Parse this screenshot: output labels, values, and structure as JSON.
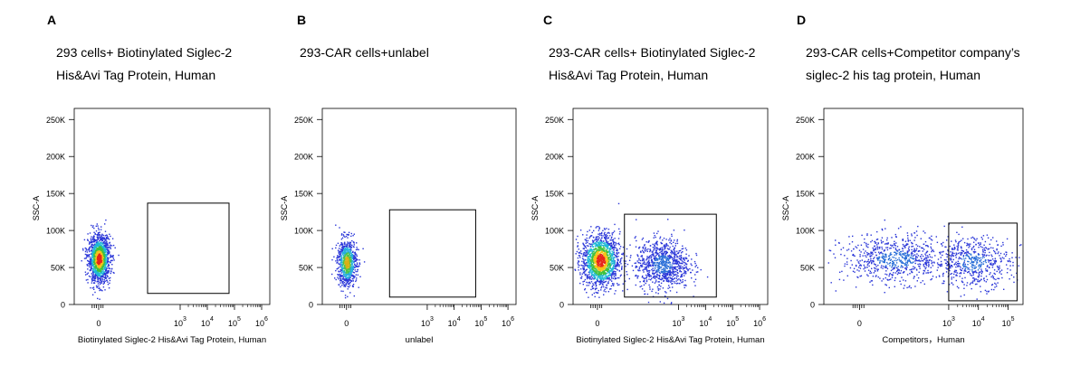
{
  "chart_data": [
    {
      "type": "scatter",
      "panel_label": "A",
      "title_lines": [
        "293 cells+ Biotinylated Siglec-2",
        "His&Avi Tag Protein, Human"
      ],
      "xlabel": "Biotinylated Siglec-2 His&Avi Tag Protein, Human",
      "ylabel": "SSC-A",
      "y_ticks": [
        "250K",
        "200K",
        "150K",
        "100K",
        "50K",
        "0"
      ],
      "y_tick_values": [
        250,
        200,
        150,
        100,
        50,
        0
      ],
      "ylim": [
        0,
        265
      ],
      "x_ticks": [
        {
          "base": "0",
          "exp": ""
        },
        {
          "base": "10",
          "exp": "3"
        },
        {
          "base": "10",
          "exp": "4"
        },
        {
          "base": "10",
          "exp": "5"
        },
        {
          "base": "10",
          "exp": "6"
        }
      ],
      "x_tick_values": [
        0,
        3,
        4,
        5,
        6
      ],
      "xlim": [
        -0.9,
        6.3
      ],
      "gate": {
        "x": [
          1.8,
          4.8
        ],
        "y": [
          15,
          137
        ]
      },
      "populations": [
        {
          "x_center": 0.0,
          "x_sd": 0.2,
          "y_center": 62,
          "y_sd": 16,
          "count": 1400,
          "density": "high"
        }
      ]
    },
    {
      "type": "scatter",
      "panel_label": "B",
      "title_lines": [
        "293-CAR cells+unlabel"
      ],
      "xlabel": "unlabel",
      "ylabel": "SSC-A",
      "y_ticks": [
        "250K",
        "200K",
        "150K",
        "100K",
        "50K",
        "0"
      ],
      "y_tick_values": [
        250,
        200,
        150,
        100,
        50,
        0
      ],
      "ylim": [
        0,
        265
      ],
      "x_ticks": [
        {
          "base": "0",
          "exp": ""
        },
        {
          "base": "10",
          "exp": "3"
        },
        {
          "base": "10",
          "exp": "4"
        },
        {
          "base": "10",
          "exp": "5"
        },
        {
          "base": "10",
          "exp": "6"
        }
      ],
      "x_tick_values": [
        0,
        3,
        4,
        5,
        6
      ],
      "xlim": [
        -0.9,
        6.3
      ],
      "gate": {
        "x": [
          1.6,
          4.8
        ],
        "y": [
          10,
          128
        ]
      },
      "populations": [
        {
          "x_center": 0.0,
          "x_sd": 0.18,
          "y_center": 57,
          "y_sd": 16,
          "count": 800,
          "density": "medium"
        }
      ]
    },
    {
      "type": "scatter",
      "panel_label": "C",
      "title_lines": [
        "293-CAR cells+ Biotinylated Siglec-2",
        "His&Avi Tag Protein, Human"
      ],
      "xlabel": "Biotinylated Siglec-2 His&Avi Tag Protein, Human",
      "ylabel": "SSC-A",
      "y_ticks": [
        "250K",
        "200K",
        "150K",
        "100K",
        "50K",
        "0"
      ],
      "y_tick_values": [
        250,
        200,
        150,
        100,
        50,
        0
      ],
      "ylim": [
        0,
        265
      ],
      "x_ticks": [
        {
          "base": "0",
          "exp": ""
        },
        {
          "base": "10",
          "exp": "3"
        },
        {
          "base": "10",
          "exp": "4"
        },
        {
          "base": "10",
          "exp": "5"
        },
        {
          "base": "10",
          "exp": "6"
        }
      ],
      "x_tick_values": [
        0,
        3,
        4,
        5,
        6
      ],
      "xlim": [
        -0.9,
        6.3
      ],
      "gate": {
        "x": [
          1.0,
          4.4
        ],
        "y": [
          10,
          122
        ]
      },
      "populations": [
        {
          "x_center": 0.1,
          "x_sd": 0.35,
          "y_center": 60,
          "y_sd": 18,
          "count": 1500,
          "density": "high"
        },
        {
          "x_center": 2.4,
          "x_sd": 0.5,
          "y_center": 55,
          "y_sd": 17,
          "count": 900,
          "density": "low"
        }
      ]
    },
    {
      "type": "scatter",
      "panel_label": "D",
      "title_lines": [
        "293-CAR cells+Competitor company’s",
        "siglec-2 his tag protein, Human"
      ],
      "xlabel": "Competitors，Human",
      "ylabel": "SSC-A",
      "y_ticks": [
        "250K",
        "200K",
        "150K",
        "100K",
        "50K",
        "0"
      ],
      "y_tick_values": [
        250,
        200,
        150,
        100,
        50,
        0
      ],
      "ylim": [
        0,
        265
      ],
      "x_ticks": [
        {
          "base": "0",
          "exp": ""
        },
        {
          "base": "10",
          "exp": "3"
        },
        {
          "base": "10",
          "exp": "4"
        },
        {
          "base": "10",
          "exp": "5"
        }
      ],
      "x_tick_values": [
        0,
        3,
        4,
        5
      ],
      "xlim": [
        -1.2,
        5.5
      ],
      "gate": {
        "x": [
          3.0,
          5.3
        ],
        "y": [
          5,
          110
        ]
      },
      "populations": [
        {
          "x_center": 1.2,
          "x_sd": 0.9,
          "y_center": 62,
          "y_sd": 16,
          "count": 750,
          "density": "low"
        },
        {
          "x_center": 3.8,
          "x_sd": 0.65,
          "y_center": 58,
          "y_sd": 17,
          "count": 550,
          "density": "low"
        }
      ]
    }
  ]
}
